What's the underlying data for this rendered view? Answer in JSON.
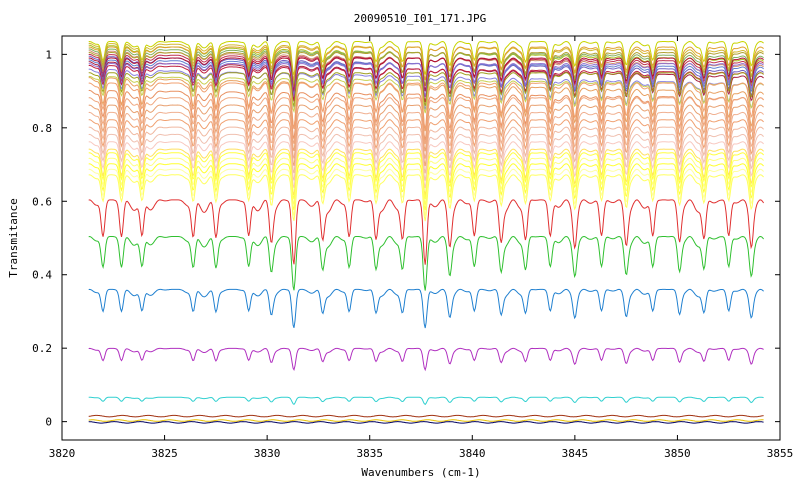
{
  "chart_data": {
    "type": "line",
    "title": "20090510_I01_171.JPG",
    "xlabel": "Wavenumbers (cm-1)",
    "ylabel": "Transmitance",
    "xlim": [
      3820,
      3855
    ],
    "ylim": [
      -0.05,
      1.05
    ],
    "x_ticks": [
      "3820",
      "3825",
      "3830",
      "3835",
      "3840",
      "3845",
      "3850",
      "3855"
    ],
    "y_ticks": [
      "0",
      "0.2",
      "0.4",
      "0.6",
      "0.8",
      "1"
    ],
    "x_range_data": [
      3821.3,
      3854.2
    ],
    "absorption_lines_cm1": [
      3822.0,
      3822.9,
      3823.9,
      3826.4,
      3827.5,
      3829.1,
      3830.2,
      3831.3,
      3832.7,
      3834.0,
      3835.3,
      3836.6,
      3837.7,
      3838.9,
      3840.1,
      3841.4,
      3842.6,
      3843.8,
      3845.0,
      3846.3,
      3847.5,
      3848.8,
      3850.1,
      3851.3,
      3852.5,
      3853.6
    ],
    "series": [
      {
        "baseline": 1.005,
        "color": "#c8d400"
      },
      {
        "baseline": 1.0,
        "color": "#d4b830"
      },
      {
        "baseline": 0.995,
        "color": "#a8c020"
      },
      {
        "baseline": 0.99,
        "color": "#e0a030"
      },
      {
        "baseline": 0.985,
        "color": "#80b060"
      },
      {
        "baseline": 0.98,
        "color": "#d09070"
      },
      {
        "baseline": 0.975,
        "color": "#b0a030"
      },
      {
        "baseline": 0.97,
        "color": "#c03050"
      },
      {
        "baseline": 0.965,
        "color": "#7060c0"
      },
      {
        "baseline": 0.96,
        "color": "#b01030"
      },
      {
        "baseline": 0.955,
        "color": "#6080d0"
      },
      {
        "baseline": 0.95,
        "color": "#a82040"
      },
      {
        "baseline": 0.945,
        "color": "#9070d0"
      },
      {
        "baseline": 0.94,
        "color": "#c02040"
      },
      {
        "baseline": 0.93,
        "color": "#8880e0"
      },
      {
        "baseline": 0.92,
        "color": "#a0a020"
      },
      {
        "baseline": 0.91,
        "color": "#c8d050"
      },
      {
        "baseline": 0.895,
        "color": "#e8a060"
      },
      {
        "baseline": 0.88,
        "color": "#f0a070"
      },
      {
        "baseline": 0.86,
        "color": "#e89060"
      },
      {
        "baseline": 0.84,
        "color": "#f0a880"
      },
      {
        "baseline": 0.82,
        "color": "#e8a070"
      },
      {
        "baseline": 0.8,
        "color": "#f0b090"
      },
      {
        "baseline": 0.78,
        "color": "#f0a070"
      },
      {
        "baseline": 0.76,
        "color": "#f0b8a0"
      },
      {
        "baseline": 0.74,
        "color": "#f0c0b0"
      },
      {
        "baseline": 0.72,
        "color": "#f8c8c0"
      },
      {
        "baseline": 0.7,
        "color": "#ffe060"
      },
      {
        "baseline": 0.69,
        "color": "#ffff40"
      },
      {
        "baseline": 0.675,
        "color": "#ffff80"
      },
      {
        "baseline": 0.66,
        "color": "#ffff30"
      },
      {
        "baseline": 0.645,
        "color": "#ffffa0"
      },
      {
        "baseline": 0.63,
        "color": "#ffff60"
      },
      {
        "baseline": 0.545,
        "color": "#e03030"
      },
      {
        "baseline": 0.455,
        "color": "#30c030"
      },
      {
        "baseline": 0.325,
        "color": "#2080d0"
      },
      {
        "baseline": 0.18,
        "color": "#b030c0"
      },
      {
        "baseline": 0.06,
        "color": "#30d0d0"
      },
      {
        "baseline": 0.015,
        "color": "#a03010"
      },
      {
        "baseline": 0.003,
        "color": "#e8c000"
      },
      {
        "baseline": -0.002,
        "color": "#000060"
      }
    ]
  }
}
